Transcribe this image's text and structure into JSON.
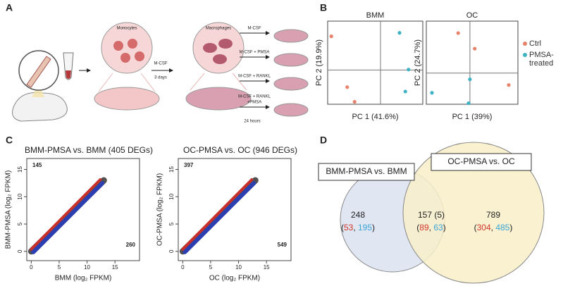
{
  "panels": [
    "A",
    "B",
    "C",
    "D"
  ],
  "diagram": {
    "monocytes": "Monocytes",
    "macrophages": "Macrophages",
    "treatment": "M-CSF",
    "duration": "3 days",
    "conditions": [
      [
        "M-CSF"
      ],
      [
        "M-CSF + PMSA"
      ],
      [
        "M-CSF + RANKL"
      ],
      [
        "M-CSF + RANKL",
        "+PMSA"
      ]
    ],
    "time": "24 hours"
  },
  "chart_data": [
    {
      "type": "scatter",
      "title": "BMM",
      "xlabel": "PC 1 (41.6%)",
      "ylabel": "PC 2 (19.9%)",
      "xlim": [
        -1,
        0.8
      ],
      "ylim": [
        -0.7,
        1
      ],
      "zero_lines": true,
      "series": [
        {
          "name": "Ctrl",
          "color": "#e8836b",
          "x": [
            -0.93,
            -0.63,
            -0.49
          ],
          "values": [
            0.69,
            -0.35,
            -0.65
          ]
        },
        {
          "name": "PMSA-treated",
          "color": "#3fb3c4",
          "x": [
            0.36,
            0.53,
            0.47
          ],
          "values": [
            0.76,
            0.01,
            -0.44
          ]
        }
      ]
    },
    {
      "type": "scatter",
      "title": "OC",
      "xlabel": "PC 1 (39%)",
      "ylabel": "PC 2 (24.7%)",
      "xlim": [
        -1,
        1.1
      ],
      "ylim": [
        -0.6,
        1
      ],
      "zero_lines": true,
      "series": [
        {
          "color": "#e8836b",
          "x": [
            -0.27,
            0.11,
            0.89
          ],
          "values": [
            0.77,
            0.47,
            -0.23
          ]
        },
        {
          "color": "#3fb3c4",
          "x": [
            -0.87,
            0,
            -0.03
          ],
          "values": [
            -0.38,
            -0.12,
            -0.58
          ]
        }
      ]
    },
    {
      "type": "density",
      "title": "BMM-PMSA vs. BMM (405 DEGs)",
      "xlabel": "BMM (log₂ FPKM)",
      "ylabel": "BMM-PMSA (log₂ FPKM)",
      "xlim": [
        -0.8,
        19.4
      ],
      "ylim": [
        -1.7,
        17
      ],
      "xticks": [
        0,
        5,
        10,
        15
      ],
      "yticks": [
        0,
        5,
        10,
        15
      ],
      "annotations": [
        {
          "text": "145",
          "color": "#d3362b"
        },
        {
          "text": "260",
          "color": "#3a86c8"
        }
      ]
    },
    {
      "type": "density",
      "title": "OC-PMSA vs. OC (946 DEGs)",
      "xlabel": "OC (log₂ FPKM)",
      "ylabel": "OC-PMSA (log₂ FPKM)",
      "xlim": [
        -0.8,
        19.4
      ],
      "ylim": [
        -1.7,
        17
      ],
      "xticks": [
        0,
        5,
        10,
        15
      ],
      "yticks": [
        0,
        5,
        10,
        15
      ],
      "annotations": [
        {
          "text": "397",
          "color": "#d3362b"
        },
        {
          "text": "549",
          "color": "#3a86c8"
        }
      ]
    }
  ],
  "venn": {
    "sets": [
      {
        "label": "BMM-PMSA vs. BMM",
        "color": "#e1e6f3"
      },
      {
        "label": "OC-PMSA vs. OC",
        "color": "#f9efc9"
      }
    ],
    "punctuation": [
      "(",
      ", ",
      ")"
    ],
    "up_color": "#d3362b",
    "down_color": "#3aa6d6",
    "regions": [
      {
        "count": "248",
        "up": 53,
        "down": 195
      },
      {
        "count": "157 (5)",
        "up": 89,
        "down": 63
      },
      {
        "count": "789",
        "up": 304,
        "down": 485
      }
    ]
  }
}
